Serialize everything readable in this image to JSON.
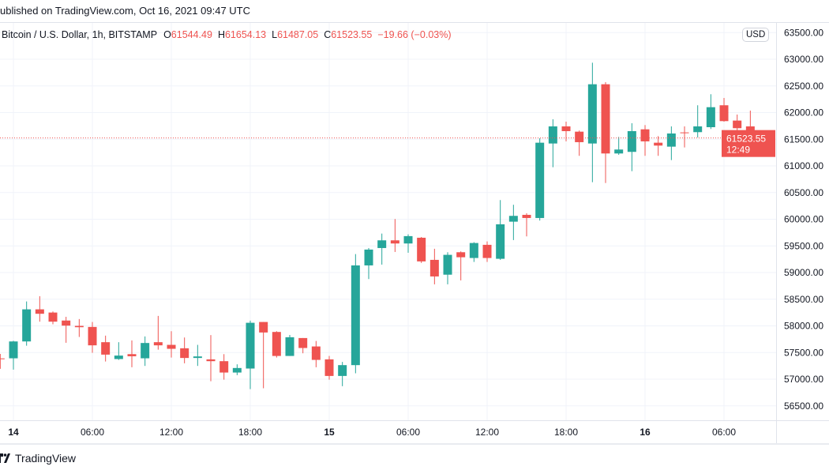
{
  "header": {
    "published": "ublished on TradingView.com, Oct 16, 2021 09:47 UTC"
  },
  "legend": {
    "symbol": "Bitcoin / U.S. Dollar, 1h, BITSTAMP",
    "o_label": "O",
    "o_value": "61544.49",
    "h_label": "H",
    "h_value": "61654.13",
    "l_label": "L",
    "l_value": "61487.05",
    "c_label": "C",
    "c_value": "61523.55",
    "change": "−19.66 (−0.03%)"
  },
  "currency_button": "USD",
  "price_tag": {
    "price": "61523.55",
    "countdown": "12:49"
  },
  "footer": {
    "brand": "TradingView",
    "logo_icon": "tradingview-logo-icon"
  },
  "colors": {
    "up": "#26a69a",
    "down": "#ef5350",
    "grid": "#f0f3fa",
    "axis_text": "#131722"
  },
  "chart_data": {
    "type": "candlestick",
    "title": "Bitcoin / U.S. Dollar, 1h, BITSTAMP",
    "ylim": [
      56300,
      63550
    ],
    "grid": true,
    "y_ticks": [
      "63500.00",
      "63000.00",
      "62500.00",
      "62000.00",
      "61500.00",
      "61000.00",
      "60500.00",
      "60000.00",
      "59500.00",
      "59000.00",
      "58500.00",
      "58000.00",
      "57500.00",
      "57000.00",
      "56500.00"
    ],
    "x_ticks": [
      {
        "label": "14",
        "time": "2021-10-14 00:00"
      },
      {
        "label": "06:00",
        "time": "2021-10-14 06:00"
      },
      {
        "label": "12:00",
        "time": "2021-10-14 12:00"
      },
      {
        "label": "18:00",
        "time": "2021-10-14 18:00"
      },
      {
        "label": "15",
        "time": "2021-10-15 00:00"
      },
      {
        "label": "06:00",
        "time": "2021-10-15 06:00"
      },
      {
        "label": "12:00",
        "time": "2021-10-15 12:00"
      },
      {
        "label": "18:00",
        "time": "2021-10-15 18:00"
      },
      {
        "label": "16",
        "time": "2021-10-16 00:00"
      },
      {
        "label": "06:00",
        "time": "2021-10-16 06:00"
      }
    ],
    "last_price": 61523.55,
    "columns": [
      "time",
      "open",
      "high",
      "low",
      "close"
    ],
    "candles": [
      [
        "2021-10-13 23:00",
        57390,
        57475,
        57195,
        57375
      ],
      [
        "2021-10-14 00:00",
        57392,
        57720,
        57180,
        57708
      ],
      [
        "2021-10-14 01:00",
        57708,
        58458,
        57628,
        58310
      ],
      [
        "2021-10-14 02:00",
        58310,
        58557,
        58079,
        58227
      ],
      [
        "2021-10-14 03:00",
        58250,
        58270,
        58030,
        58079
      ],
      [
        "2021-10-14 04:00",
        58100,
        58170,
        57683,
        58005
      ],
      [
        "2021-10-14 05:00",
        58000,
        58128,
        57792,
        57975
      ],
      [
        "2021-10-14 06:00",
        57980,
        58073,
        57495,
        57635
      ],
      [
        "2021-10-14 07:00",
        57694,
        57817,
        57332,
        57461
      ],
      [
        "2021-10-14 08:00",
        57378,
        57694,
        57362,
        57443
      ],
      [
        "2021-10-14 09:00",
        57470,
        57727,
        57224,
        57430
      ],
      [
        "2021-10-14 10:00",
        57392,
        57802,
        57249,
        57679
      ],
      [
        "2021-10-14 11:00",
        57694,
        58187,
        57554,
        57635
      ],
      [
        "2021-10-14 12:00",
        57644,
        57900,
        57406,
        57570
      ],
      [
        "2021-10-14 13:00",
        57580,
        57782,
        57298,
        57398
      ],
      [
        "2021-10-14 14:00",
        57398,
        57644,
        57249,
        57427
      ],
      [
        "2021-10-14 15:00",
        57372,
        57827,
        56962,
        57338
      ],
      [
        "2021-10-14 16:00",
        57338,
        57470,
        56991,
        57125
      ],
      [
        "2021-10-14 17:00",
        57125,
        57279,
        57076,
        57210
      ],
      [
        "2021-10-14 18:00",
        57200,
        58098,
        56814,
        58058
      ],
      [
        "2021-10-14 19:00",
        58073,
        58073,
        56830,
        57876
      ],
      [
        "2021-10-14 20:00",
        57886,
        57900,
        57406,
        57436
      ],
      [
        "2021-10-14 21:00",
        57436,
        57830,
        57436,
        57787
      ],
      [
        "2021-10-14 22:00",
        57772,
        57772,
        57486,
        57585
      ],
      [
        "2021-10-14 23:00",
        57614,
        57717,
        57224,
        57362
      ],
      [
        "2021-10-15 00:00",
        57372,
        57436,
        56991,
        57061
      ],
      [
        "2021-10-15 01:00",
        57061,
        57324,
        56869,
        57264
      ],
      [
        "2021-10-15 02:00",
        57264,
        59347,
        57112,
        59134
      ],
      [
        "2021-10-15 03:00",
        59134,
        59460,
        58878,
        59431
      ],
      [
        "2021-10-15 04:00",
        59460,
        59731,
        59149,
        59604
      ],
      [
        "2021-10-15 05:00",
        59604,
        60004,
        59386,
        59545
      ],
      [
        "2021-10-15 06:00",
        59545,
        59717,
        59371,
        59683
      ],
      [
        "2021-10-15 07:00",
        59653,
        59667,
        59180,
        59209
      ],
      [
        "2021-10-15 08:00",
        59238,
        59446,
        58779,
        58927
      ],
      [
        "2021-10-15 09:00",
        58960,
        59381,
        58779,
        59332
      ],
      [
        "2021-10-15 10:00",
        59381,
        59397,
        58853,
        59287
      ],
      [
        "2021-10-15 11:00",
        59273,
        59569,
        59199,
        59554
      ],
      [
        "2021-10-15 12:00",
        59520,
        59584,
        59199,
        59273
      ],
      [
        "2021-10-15 13:00",
        59258,
        60359,
        59238,
        59905
      ],
      [
        "2021-10-15 14:00",
        59954,
        60271,
        59609,
        60063
      ],
      [
        "2021-10-15 15:00",
        60082,
        60112,
        59678,
        60023
      ],
      [
        "2021-10-15 16:00",
        60023,
        61519,
        59975,
        61435
      ],
      [
        "2021-10-15 17:00",
        61420,
        61874,
        60975,
        61741
      ],
      [
        "2021-10-15 18:00",
        61741,
        61830,
        61460,
        61652
      ],
      [
        "2021-10-15 19:00",
        61642,
        61663,
        61189,
        61445
      ],
      [
        "2021-10-15 20:00",
        61420,
        62936,
        60694,
        62531
      ],
      [
        "2021-10-15 21:00",
        62531,
        62570,
        60679,
        61233
      ],
      [
        "2021-10-15 22:00",
        61233,
        61544,
        61208,
        61307
      ],
      [
        "2021-10-15 23:00",
        61263,
        61800,
        60901,
        61652
      ],
      [
        "2021-10-16 00:00",
        61686,
        61766,
        61189,
        61460
      ],
      [
        "2021-10-16 01:00",
        61435,
        61559,
        61189,
        61381
      ],
      [
        "2021-10-16 02:00",
        61361,
        61741,
        61109,
        61608
      ],
      [
        "2021-10-16 03:00",
        61628,
        61741,
        61346,
        61614
      ],
      [
        "2021-10-16 04:00",
        61633,
        62137,
        61534,
        61741
      ],
      [
        "2021-10-16 05:00",
        61726,
        62344,
        61692,
        62101
      ],
      [
        "2021-10-16 06:00",
        62137,
        62274,
        61830,
        61840
      ],
      [
        "2021-10-16 07:00",
        61850,
        61963,
        61553,
        61707
      ],
      [
        "2021-10-16 08:00",
        61741,
        62037,
        61445,
        61509
      ],
      [
        "2021-10-16 09:00",
        61544.49,
        61654.13,
        61487.05,
        61523.55
      ]
    ]
  }
}
